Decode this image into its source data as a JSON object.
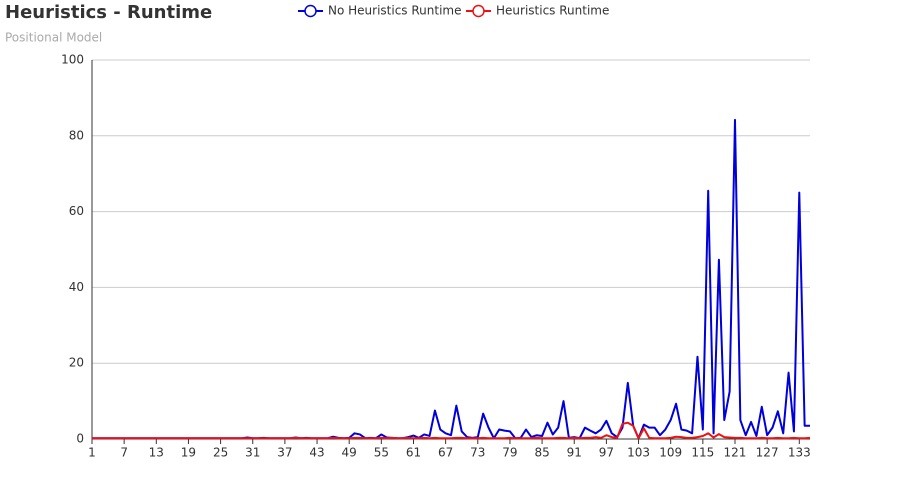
{
  "chart_data": {
    "type": "line",
    "title": "Heuristics - Runtime",
    "subtitle": "Positional Model",
    "x": [
      1,
      2,
      3,
      4,
      5,
      6,
      7,
      8,
      9,
      10,
      11,
      12,
      13,
      14,
      15,
      16,
      17,
      18,
      19,
      20,
      21,
      22,
      23,
      24,
      25,
      26,
      27,
      28,
      29,
      30,
      31,
      32,
      33,
      34,
      35,
      36,
      37,
      38,
      39,
      40,
      41,
      42,
      43,
      44,
      45,
      46,
      47,
      48,
      49,
      50,
      51,
      52,
      53,
      54,
      55,
      56,
      57,
      58,
      59,
      60,
      61,
      62,
      63,
      64,
      65,
      66,
      67,
      68,
      69,
      70,
      71,
      72,
      73,
      74,
      75,
      76,
      77,
      78,
      79,
      80,
      81,
      82,
      83,
      84,
      85,
      86,
      87,
      88,
      89,
      90,
      91,
      92,
      93,
      94,
      95,
      96,
      97,
      98,
      99,
      100,
      101,
      102,
      103,
      104,
      105,
      106,
      107,
      108,
      109,
      110,
      111,
      112,
      113,
      114,
      115,
      116,
      117,
      118,
      119,
      120,
      121,
      122,
      123,
      124,
      125,
      126,
      127,
      128,
      129,
      130,
      131,
      132,
      133,
      134,
      135
    ],
    "series": [
      {
        "name": "No Heuristics Runtime",
        "color": "#0000dd",
        "values": [
          0.2,
          0.2,
          0.2,
          0.2,
          0.2,
          0.2,
          0.2,
          0.2,
          0.2,
          0.2,
          0.2,
          0.2,
          0.2,
          0.2,
          0.2,
          0.2,
          0.2,
          0.2,
          0.2,
          0.2,
          0.2,
          0.2,
          0.2,
          0.2,
          0.2,
          0.2,
          0.2,
          0.2,
          0.2,
          0.4,
          0.2,
          0.2,
          0.3,
          0.2,
          0.2,
          0.2,
          0.2,
          0.2,
          0.4,
          0.2,
          0.3,
          0.2,
          0.2,
          0.2,
          0.2,
          0.6,
          0.3,
          0.2,
          0.3,
          1.5,
          1.2,
          0.2,
          0.3,
          0.2,
          1.2,
          0.4,
          0.3,
          0.2,
          0.2,
          0.5,
          0.9,
          0.3,
          1.2,
          0.8,
          7.5,
          2.5,
          1.5,
          1,
          8.8,
          2,
          0.5,
          0.3,
          0.5,
          6.7,
          3,
          0.2,
          2.5,
          2.2,
          2,
          0.2,
          0.3,
          2.5,
          0.5,
          1,
          0.8,
          4.3,
          1.2,
          3,
          10,
          0.3,
          0.5,
          0.2,
          3,
          2.2,
          1.5,
          2.5,
          4.8,
          1.5,
          0.5,
          3,
          14.8,
          3.5,
          0.2,
          3.8,
          3,
          3,
          1,
          2.5,
          5,
          9.3,
          2.5,
          2.2,
          1.5,
          21.7,
          2.5,
          65.5,
          1.5,
          47.3,
          5,
          12.5,
          84.2,
          5,
          1,
          4.5,
          0.8,
          8.5,
          1,
          3,
          7.3,
          1.5,
          17.5,
          2,
          65,
          3.5,
          3.5
        ]
      },
      {
        "name": "Heuristics Runtime",
        "color": "#ee1111",
        "values": [
          0.2,
          0.2,
          0.2,
          0.2,
          0.2,
          0.2,
          0.2,
          0.2,
          0.2,
          0.2,
          0.2,
          0.2,
          0.2,
          0.2,
          0.2,
          0.2,
          0.2,
          0.2,
          0.2,
          0.2,
          0.2,
          0.2,
          0.2,
          0.2,
          0.2,
          0.2,
          0.2,
          0.2,
          0.2,
          0.2,
          0.2,
          0.2,
          0.2,
          0.2,
          0.2,
          0.2,
          0.2,
          0.2,
          0.3,
          0.2,
          0.2,
          0.2,
          0.2,
          0.2,
          0.2,
          0.3,
          0.2,
          0.2,
          0.2,
          0.3,
          0.3,
          0.2,
          0.2,
          0.2,
          0.3,
          0.2,
          0.3,
          0.2,
          0.2,
          0.3,
          0.2,
          0.2,
          0.3,
          0.2,
          0.3,
          0.2,
          0.2,
          0.2,
          0.3,
          0.3,
          0.2,
          0.2,
          0.2,
          0.3,
          0.2,
          0.2,
          0.2,
          0.2,
          0.3,
          0.2,
          0.2,
          0.2,
          0.2,
          0.3,
          0.2,
          0.2,
          0.2,
          0.3,
          0.3,
          0.2,
          0.3,
          0.2,
          0.3,
          0.3,
          0.5,
          0.3,
          1,
          0.5,
          0.3,
          4,
          4.3,
          3.5,
          0.2,
          2.8,
          0.3,
          0.2,
          0.2,
          0.2,
          0.3,
          0.6,
          0.5,
          0.3,
          0.3,
          0.5,
          0.8,
          1.5,
          0.4,
          1.3,
          0.5,
          0.4,
          0.3,
          0.3,
          0.2,
          0.2,
          0.2,
          0.3,
          0.2,
          0.2,
          0.3,
          0.2,
          0.2,
          0.3,
          0.2,
          0.2,
          0.3
        ]
      }
    ],
    "xlim": [
      1,
      135
    ],
    "xticks": [
      1,
      7,
      13,
      19,
      25,
      31,
      37,
      43,
      49,
      55,
      61,
      67,
      73,
      79,
      85,
      91,
      97,
      103,
      109,
      115,
      121,
      127,
      133
    ],
    "ylim": [
      0,
      100
    ],
    "yticks": [
      0,
      20,
      40,
      60,
      80,
      100
    ],
    "grid": true,
    "legend": "top"
  }
}
